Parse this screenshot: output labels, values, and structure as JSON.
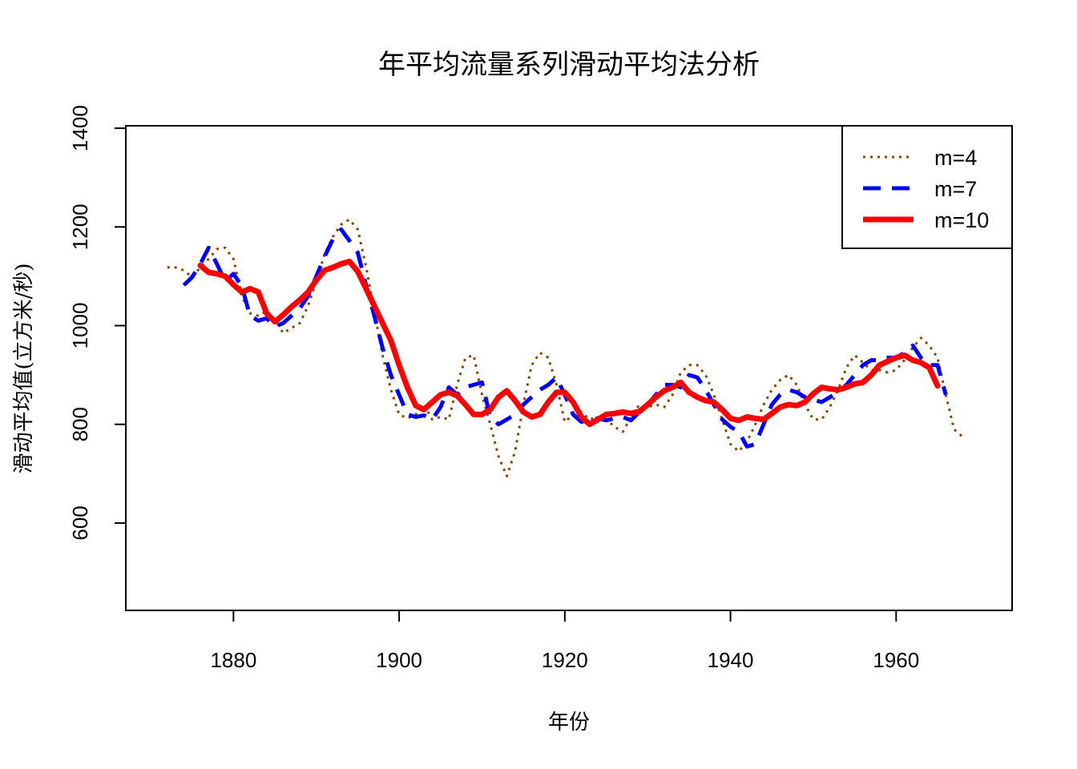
{
  "chart_data": {
    "type": "line",
    "title": "年平均流量系列滑动平均法分析",
    "xlabel": "年份",
    "ylabel": "滑动平均值(立方米/秒)",
    "xlim": [
      1867,
      1974
    ],
    "ylim": [
      423,
      1405
    ],
    "xticks": [
      1880,
      1900,
      1920,
      1940,
      1960
    ],
    "yticks": [
      600,
      800,
      1000,
      1200,
      1400
    ],
    "legend_position": "top-right",
    "series": [
      {
        "name": "m=4",
        "color": "#8B4500",
        "style": "dotted",
        "x": [
          1872,
          1873,
          1874,
          1875,
          1876,
          1877,
          1878,
          1879,
          1880,
          1881,
          1882,
          1883,
          1884,
          1885,
          1886,
          1887,
          1888,
          1889,
          1890,
          1891,
          1892,
          1893,
          1894,
          1895,
          1896,
          1897,
          1898,
          1899,
          1900,
          1901,
          1902,
          1903,
          1904,
          1905,
          1906,
          1907,
          1908,
          1909,
          1910,
          1911,
          1912,
          1913,
          1914,
          1915,
          1916,
          1917,
          1918,
          1919,
          1920,
          1921,
          1922,
          1923,
          1924,
          1925,
          1926,
          1927,
          1928,
          1929,
          1930,
          1931,
          1932,
          1933,
          1934,
          1935,
          1936,
          1937,
          1938,
          1939,
          1940,
          1941,
          1942,
          1943,
          1944,
          1945,
          1946,
          1947,
          1948,
          1949,
          1950,
          1951,
          1952,
          1953,
          1954,
          1955,
          1956,
          1957,
          1958,
          1959,
          1960,
          1961,
          1962,
          1963,
          1964,
          1965,
          1966,
          1967,
          1968
        ],
        "values": [
          1118,
          1118,
          1112,
          1098,
          1118,
          1135,
          1155,
          1158,
          1135,
          1060,
          1025,
          1020,
          1030,
          1012,
          985,
          995,
          1005,
          1040,
          1090,
          1145,
          1180,
          1205,
          1215,
          1195,
          1120,
          1030,
          940,
          870,
          820,
          812,
          820,
          840,
          810,
          815,
          810,
          880,
          935,
          940,
          860,
          800,
          735,
          695,
          745,
          840,
          920,
          945,
          935,
          880,
          805,
          820,
          825,
          810,
          815,
          810,
          795,
          785,
          815,
          840,
          835,
          840,
          835,
          860,
          905,
          920,
          920,
          900,
          860,
          810,
          760,
          745,
          765,
          800,
          840,
          870,
          890,
          900,
          880,
          840,
          810,
          810,
          835,
          870,
          915,
          940,
          925,
          910,
          910,
          905,
          910,
          930,
          955,
          975,
          960,
          935,
          860,
          790,
          775
        ]
      },
      {
        "name": "m=7",
        "color": "#0000FF",
        "style": "dashed",
        "x": [
          1874,
          1875,
          1876,
          1877,
          1878,
          1879,
          1880,
          1881,
          1882,
          1883,
          1884,
          1885,
          1886,
          1887,
          1888,
          1889,
          1890,
          1891,
          1892,
          1893,
          1894,
          1895,
          1896,
          1897,
          1898,
          1899,
          1900,
          1901,
          1902,
          1903,
          1904,
          1905,
          1906,
          1907,
          1908,
          1909,
          1910,
          1911,
          1912,
          1913,
          1914,
          1915,
          1916,
          1917,
          1918,
          1919,
          1920,
          1921,
          1922,
          1923,
          1924,
          1925,
          1926,
          1927,
          1928,
          1929,
          1930,
          1931,
          1932,
          1933,
          1934,
          1935,
          1936,
          1937,
          1938,
          1939,
          1940,
          1941,
          1942,
          1943,
          1944,
          1945,
          1946,
          1947,
          1948,
          1949,
          1950,
          1951,
          1952,
          1953,
          1954,
          1955,
          1956,
          1957,
          1958,
          1959,
          1960,
          1961,
          1962,
          1963,
          1964,
          1965,
          1966
        ],
        "values": [
          1082,
          1098,
          1125,
          1158,
          1125,
          1090,
          1105,
          1080,
          1020,
          1010,
          1015,
          998,
          1005,
          1020,
          1035,
          1060,
          1100,
          1140,
          1175,
          1195,
          1172,
          1148,
          1082,
          1020,
          955,
          900,
          860,
          820,
          815,
          818,
          810,
          835,
          875,
          860,
          875,
          880,
          885,
          815,
          800,
          810,
          820,
          840,
          855,
          870,
          880,
          895,
          860,
          820,
          805,
          810,
          812,
          808,
          812,
          815,
          808,
          825,
          840,
          860,
          880,
          880,
          875,
          900,
          895,
          870,
          840,
          810,
          795,
          785,
          755,
          760,
          800,
          840,
          860,
          870,
          865,
          855,
          850,
          845,
          855,
          865,
          880,
          900,
          920,
          930,
          930,
          935,
          935,
          945,
          960,
          935,
          920,
          920,
          860
        ]
      },
      {
        "name": "m=10",
        "color": "#FF0000",
        "style": "solid",
        "x": [
          1876,
          1877,
          1878,
          1879,
          1880,
          1881,
          1882,
          1883,
          1884,
          1885,
          1886,
          1887,
          1888,
          1889,
          1890,
          1891,
          1892,
          1893,
          1894,
          1895,
          1896,
          1897,
          1898,
          1899,
          1900,
          1901,
          1902,
          1903,
          1904,
          1905,
          1906,
          1907,
          1908,
          1909,
          1910,
          1911,
          1912,
          1913,
          1914,
          1915,
          1916,
          1917,
          1918,
          1919,
          1920,
          1921,
          1922,
          1923,
          1924,
          1925,
          1926,
          1927,
          1928,
          1929,
          1930,
          1931,
          1932,
          1933,
          1934,
          1935,
          1936,
          1937,
          1938,
          1939,
          1940,
          1941,
          1942,
          1943,
          1944,
          1945,
          1946,
          1947,
          1948,
          1949,
          1950,
          1951,
          1952,
          1953,
          1954,
          1955,
          1956,
          1957,
          1958,
          1959,
          1960,
          1961,
          1962,
          1963,
          1964,
          1965
        ],
        "values": [
          1122,
          1108,
          1105,
          1100,
          1083,
          1068,
          1075,
          1068,
          1025,
          1008,
          1022,
          1038,
          1052,
          1068,
          1092,
          1112,
          1118,
          1125,
          1130,
          1110,
          1075,
          1040,
          1005,
          970,
          920,
          875,
          838,
          830,
          845,
          860,
          865,
          858,
          840,
          820,
          820,
          830,
          855,
          868,
          848,
          825,
          815,
          820,
          845,
          865,
          865,
          845,
          815,
          800,
          810,
          820,
          822,
          825,
          822,
          826,
          840,
          855,
          868,
          875,
          885,
          865,
          855,
          848,
          845,
          830,
          812,
          808,
          815,
          812,
          810,
          822,
          835,
          840,
          838,
          845,
          862,
          875,
          872,
          870,
          875,
          882,
          885,
          900,
          920,
          928,
          935,
          940,
          930,
          925,
          915,
          878
        ]
      }
    ]
  }
}
